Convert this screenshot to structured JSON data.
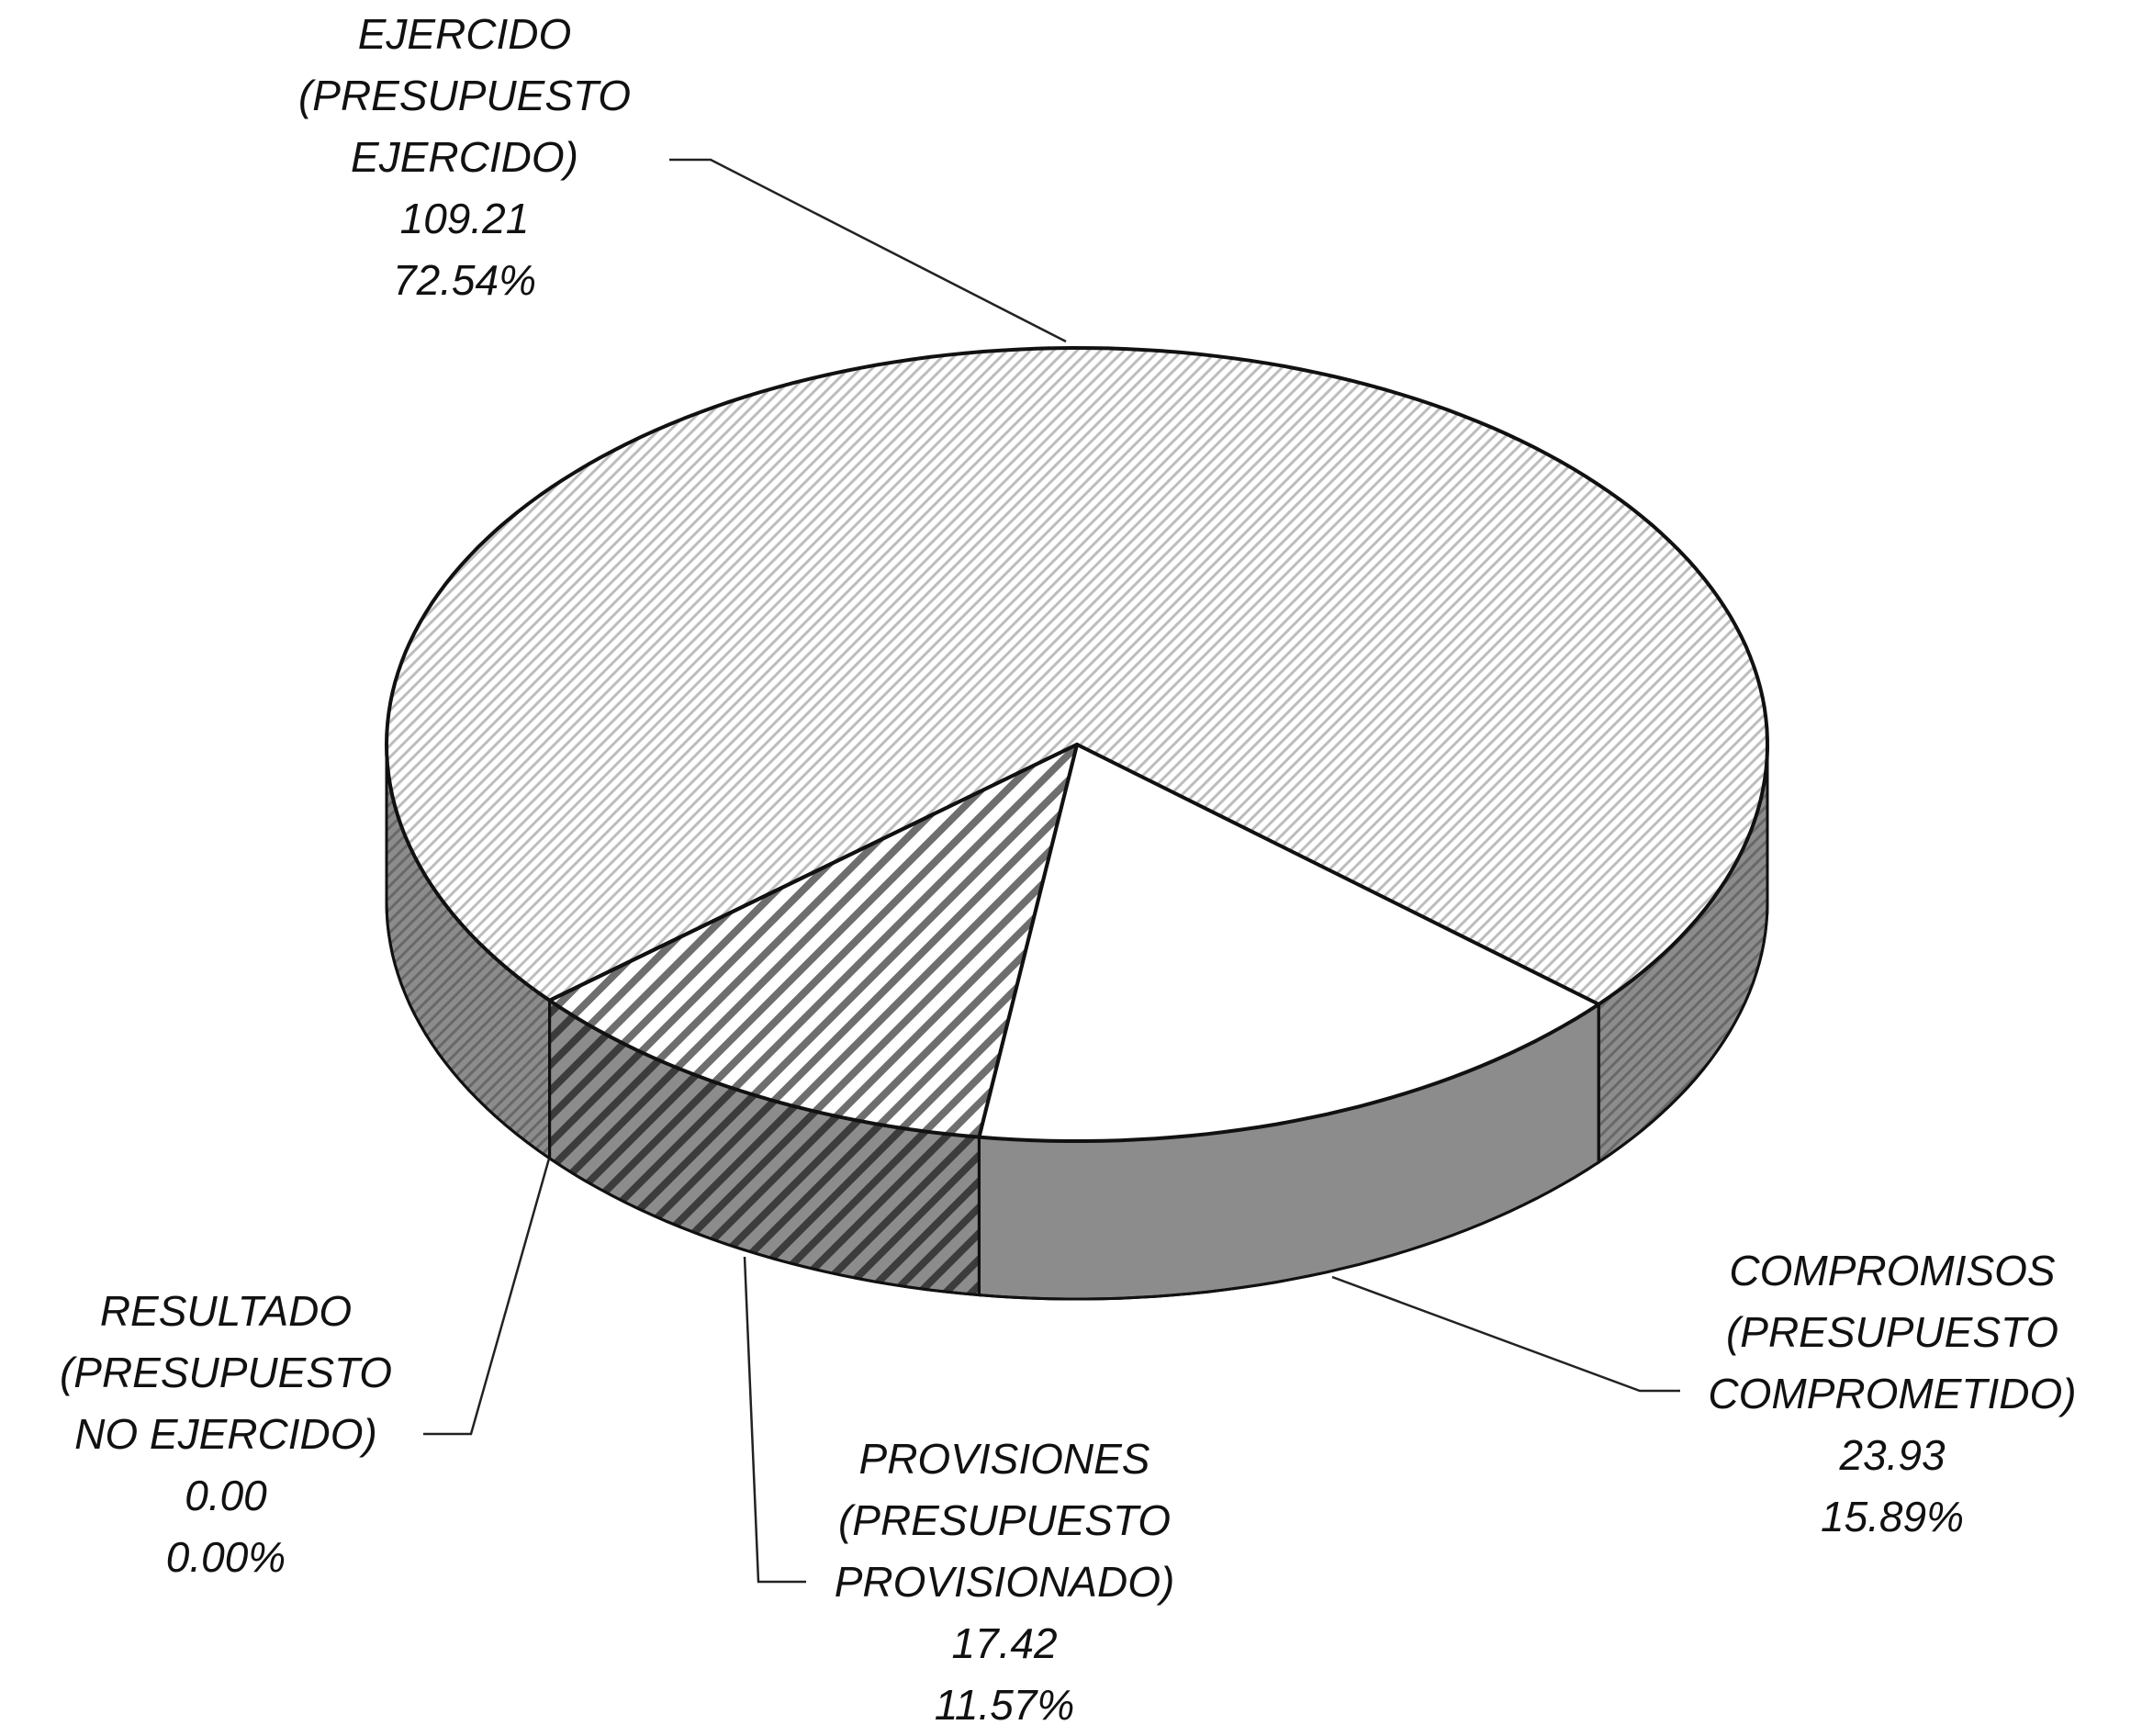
{
  "chart_data": {
    "type": "pie3d",
    "labels": [
      [
        "EJERCIDO",
        "(PRESUPUESTO",
        "EJERCIDO)"
      ],
      [
        "COMPROMISOS",
        "(PRESUPUESTO",
        "COMPROMETIDO)"
      ],
      [
        "PROVISIONES",
        "(PRESUPUESTO",
        "PROVISIONADO)"
      ],
      [
        "RESULTADO",
        "(PRESUPUESTO",
        "NO EJERCIDO)"
      ]
    ],
    "values": [
      109.21,
      23.93,
      17.42,
      0
    ],
    "value_labels": [
      "109.21",
      "23.93",
      "17.42",
      "0.00"
    ],
    "percents": [
      72.54,
      15.89,
      11.57,
      0
    ],
    "percent_labels": [
      "72.54%",
      "15.89%",
      "11.57%",
      "0.00%"
    ],
    "colors": [
      "#bdbdbd",
      "#ffffff",
      "#6e6e6e",
      "#bdbdbd"
    ]
  }
}
